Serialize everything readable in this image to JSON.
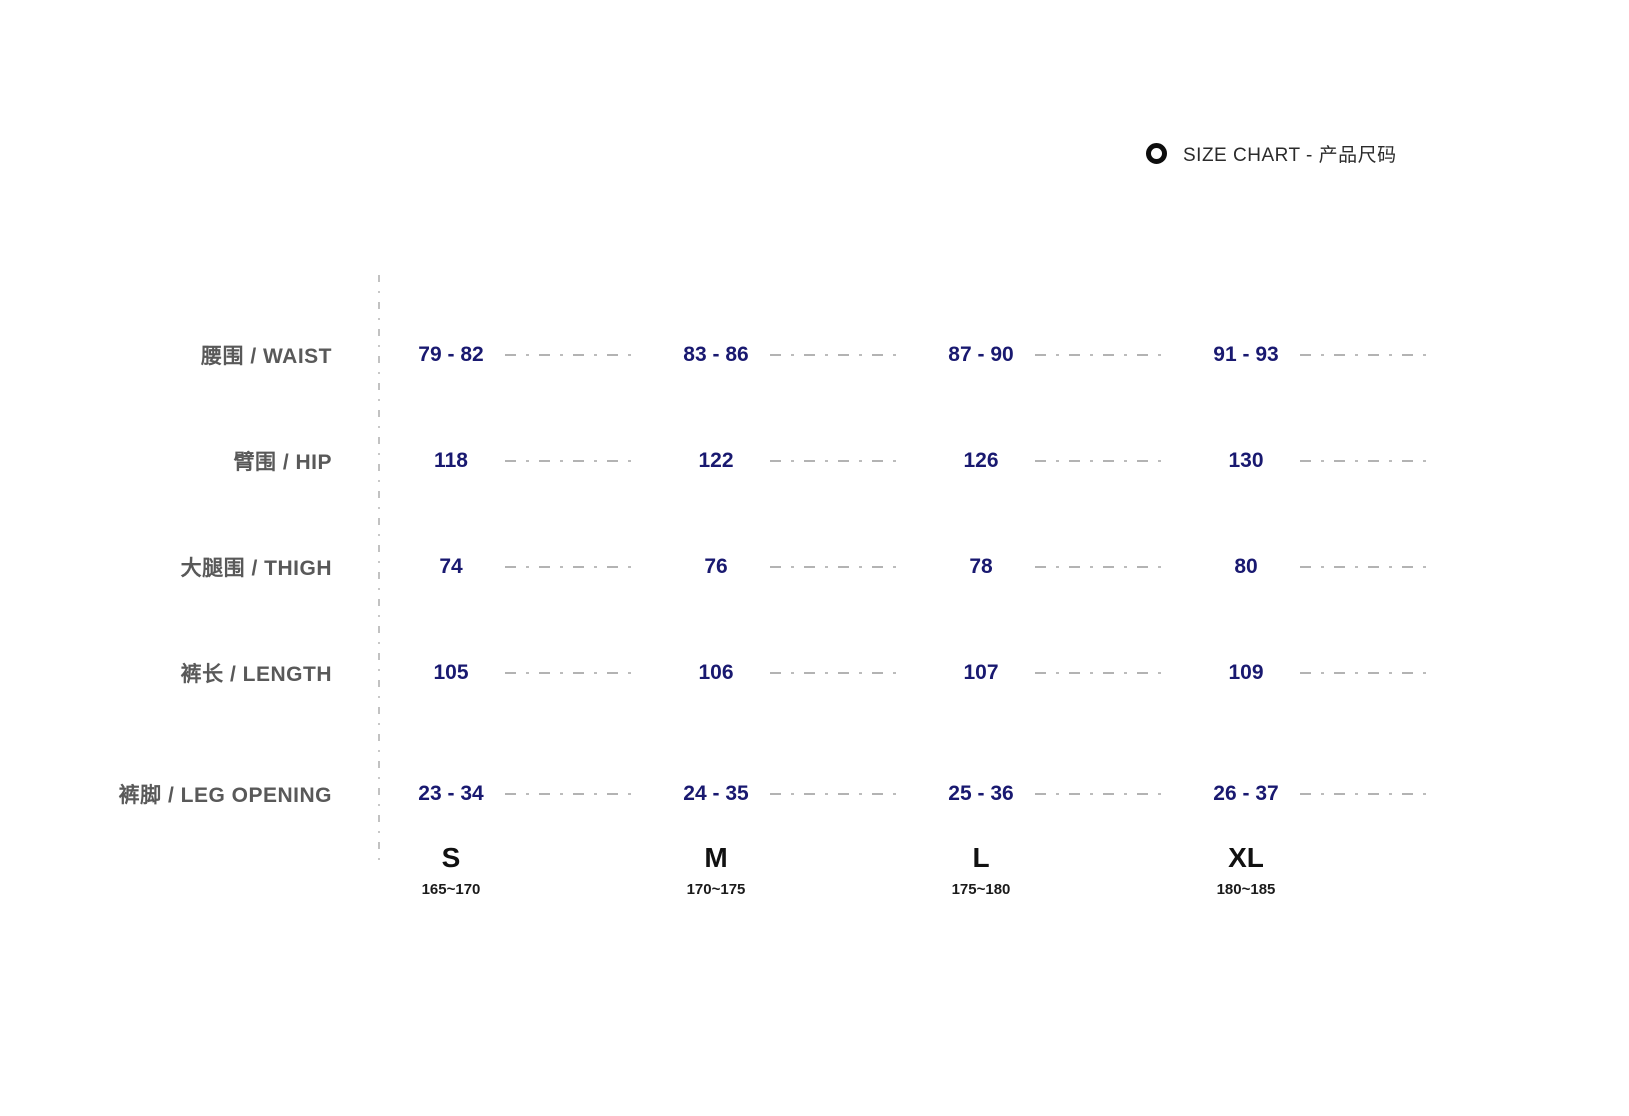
{
  "header": {
    "title": "SIZE CHART - 产品尺码",
    "icon": "ring-icon"
  },
  "colors": {
    "value_navy": "#191970",
    "label_gray": "#595959",
    "dash_gray": "#b3b3b3",
    "heading_black": "#2b2b2b"
  },
  "chart_data": {
    "type": "table",
    "title": "SIZE CHART - 产品尺码",
    "columns": [
      "S",
      "M",
      "L",
      "XL"
    ],
    "column_heights": [
      "165~170",
      "170~175",
      "175~180",
      "180~185"
    ],
    "rows": [
      {
        "label": "腰围 / WAIST",
        "values": [
          "79 - 82",
          "83 - 86",
          "87 - 90",
          "91 - 93"
        ]
      },
      {
        "label": "臂围 / HIP",
        "values": [
          "118",
          "122",
          "126",
          "130"
        ]
      },
      {
        "label": "大腿围 / THIGH",
        "values": [
          "74",
          "76",
          "78",
          "80"
        ]
      },
      {
        "label": "裤长 / LENGTH",
        "values": [
          "105",
          "106",
          "107",
          "109"
        ]
      },
      {
        "label": "裤脚 / LEG OPENING",
        "values": [
          "23 - 34",
          "24 - 35",
          "25 - 36",
          "26 - 37"
        ]
      }
    ],
    "layout": {
      "legend_position": "none",
      "grid": "dashed-connectors",
      "units": "cm"
    }
  }
}
